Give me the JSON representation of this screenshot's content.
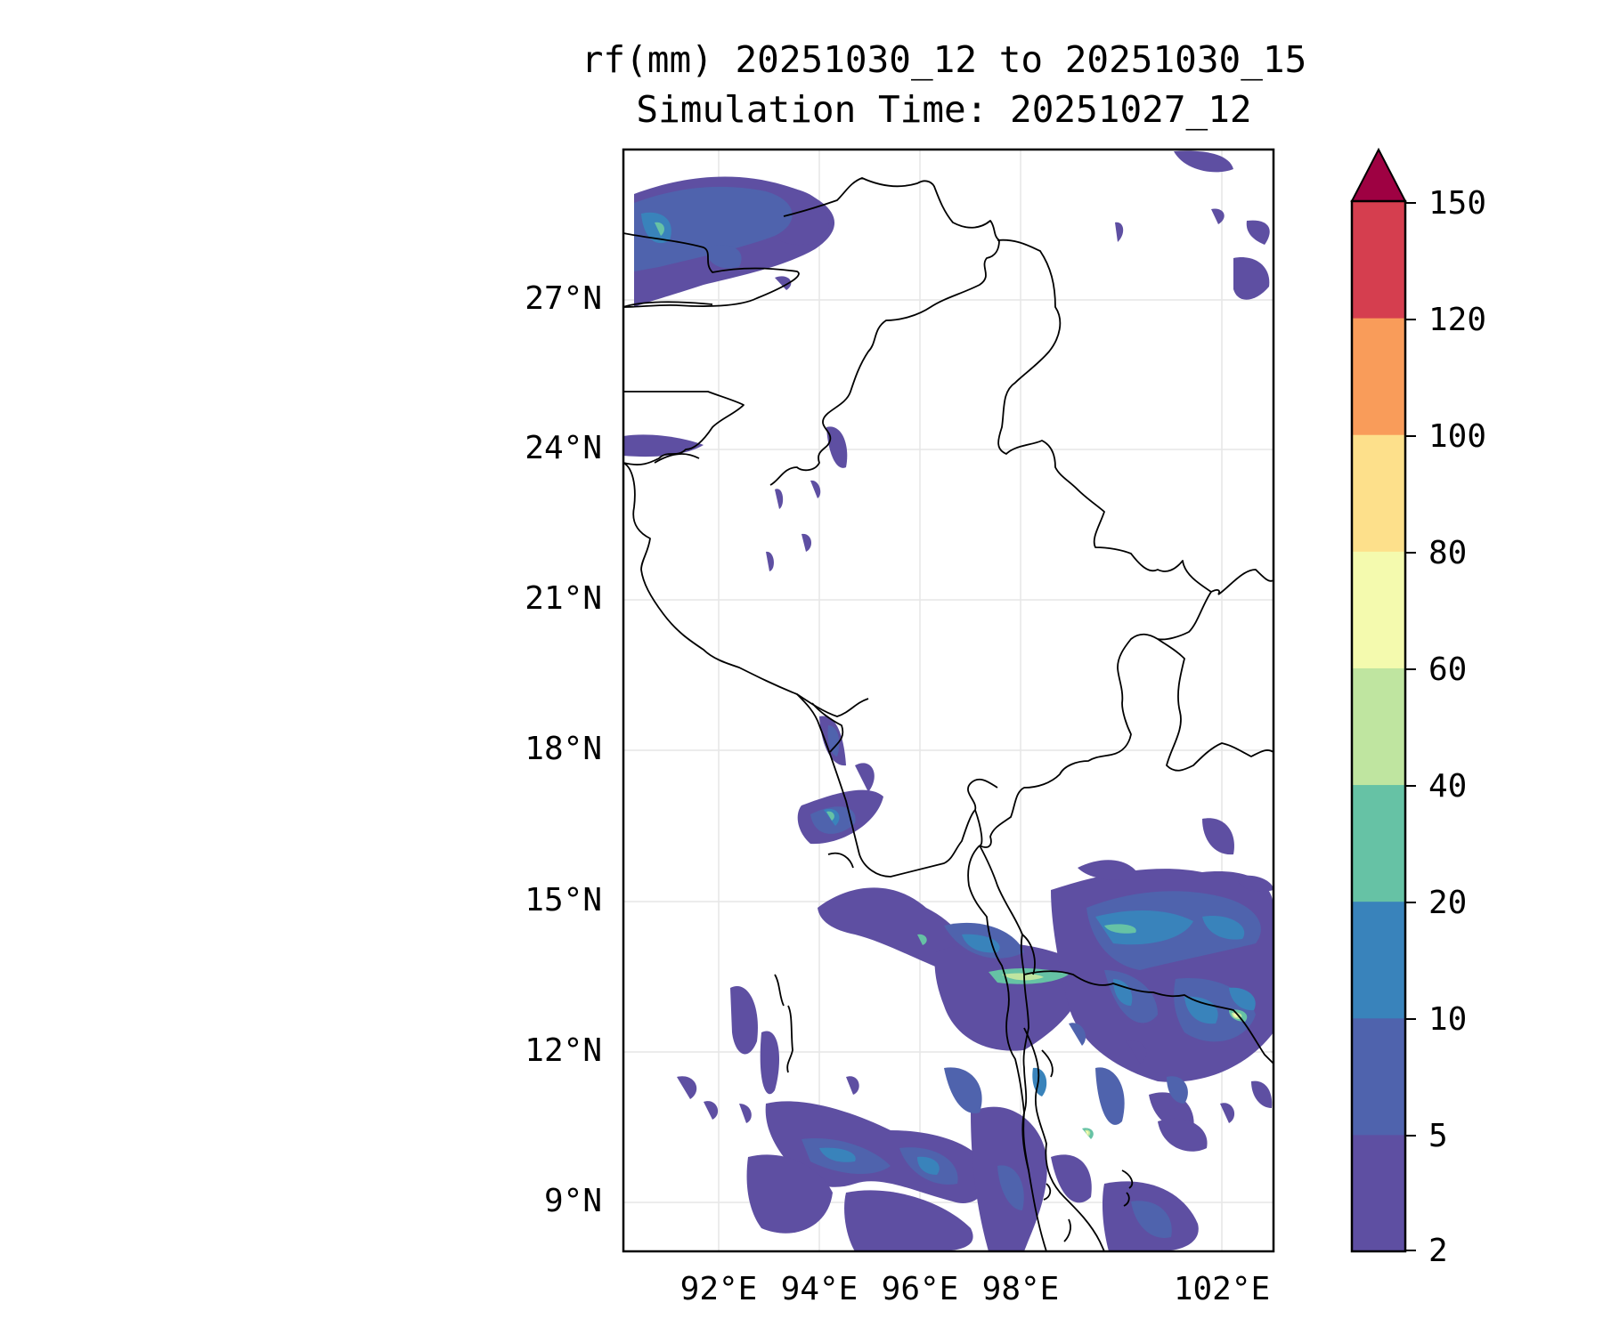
{
  "title": {
    "line1": "rf(mm) 20251030_12 to 20251030_15",
    "line2": "Simulation Time: 20251027_12"
  },
  "map": {
    "lat_ticks": [
      "27°N",
      "24°N",
      "21°N",
      "18°N",
      "15°N",
      "12°N",
      "9°N"
    ],
    "lon_ticks": [
      "92°E",
      "94°E",
      "96°E",
      "98°E",
      "102°E"
    ],
    "extent": {
      "lon_min": 90.1,
      "lon_max": 103.0,
      "lat_min": 8.1,
      "lat_max": 30.0
    },
    "gridlines": true
  },
  "colorbar": {
    "ticks": [
      "150",
      "120",
      "100",
      "80",
      "60",
      "40",
      "20",
      "10",
      "5",
      "2"
    ],
    "levels": [
      2,
      5,
      10,
      20,
      40,
      60,
      80,
      100,
      120,
      150
    ],
    "colors": [
      "#5e4fa2",
      "#4f63ad",
      "#3983bb",
      "#66c2a5",
      "#bfe5a0",
      "#f4faae",
      "#fde08b",
      "#f99c5a",
      "#d53e4f",
      "#9e0142"
    ],
    "extend": "max"
  },
  "colors": {
    "rain_2_5": "#5e4fa2",
    "rain_5_10": "#4f63ad",
    "rain_10_20": "#3983bb",
    "rain_20_40": "#66c2a5",
    "rain_40_60": "#bfe5a0",
    "rain_60_80": "#f4faae",
    "border": "#000000",
    "grid": "#e6e6e6"
  }
}
